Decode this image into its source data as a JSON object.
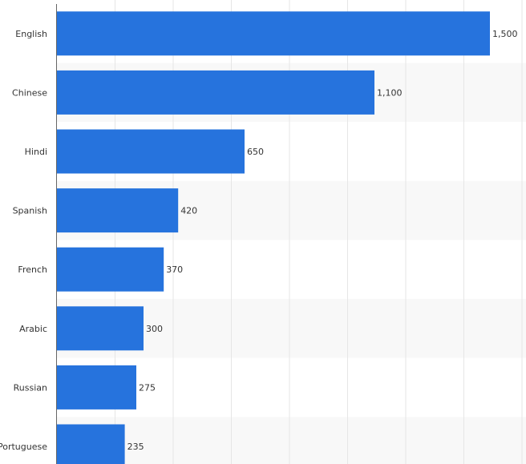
{
  "chart_data": {
    "type": "bar",
    "orientation": "horizontal",
    "categories": [
      "English",
      "Chinese",
      "Hindi",
      "Spanish",
      "French",
      "Arabic",
      "Russian",
      "Portuguese"
    ],
    "values": [
      1500,
      1100,
      650,
      420,
      370,
      300,
      275,
      235
    ],
    "value_labels": [
      "1,500",
      "1,100",
      "650",
      "420",
      "370",
      "300",
      "275",
      "235"
    ],
    "xlim": [
      0,
      1625
    ],
    "grid": true,
    "bar_color": "#2673dd",
    "stripe_color": "#f8f8f8",
    "grid_color": "#e6e6e6",
    "axis_color": "#666666"
  }
}
